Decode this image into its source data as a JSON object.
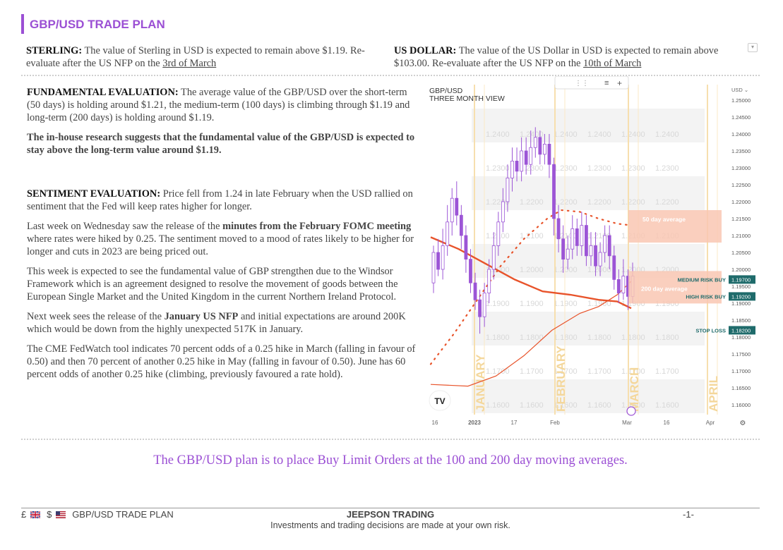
{
  "page": {
    "title": "GBP/USD TRADE PLAN"
  },
  "sterling": {
    "label": "STERLING:",
    "text": "The value of Sterling in USD is expected to remain above $1.19. Re-evaluate  after the US NFP on the ",
    "date": "3rd of March"
  },
  "usdollar": {
    "label": "US DOLLAR:",
    "text": "The value of the US Dollar in USD is expected to remain above $103.00. Re-evaluate after the US NFP on the ",
    "date": "10th of March"
  },
  "fundamental": {
    "label": "FUNDAMENTAL EVALUATION:",
    "text": "The average value of the GBP/USD over the short-term (50 days) is holding around $1.21, the medium-term (100 days) is climbing through $1.19 and long-term (200 days) is holding around $1.19.",
    "research": "The in-house research suggests that the fundamental value of the GBP/USD is expected to stay above the long-term value around $1.19."
  },
  "sentiment": {
    "label": "SENTIMENT EVALUATION:",
    "text": "Price fell from 1.24 in late February when the USD rallied on sentiment that the Fed will keep rates higher for longer.",
    "p2_a": "Last week on Wednesday saw the release of the ",
    "p2_b": "minutes from the February FOMC meeting",
    "p2_c": " where rates were hiked by 0.25. The sentiment moved to a mood of rates likely to be higher for longer and cuts in 2023 are being priced out.",
    "p3": "This week is expected to see the fundamental value of GBP strengthen due to the Windsor Framework which is an agreement designed to resolve the movement of goods between the European Single Market and the United Kingdom in the current Northern Ireland Protocol.",
    "p4_a": "Next week sees the release of the ",
    "p4_b": "January US NFP",
    "p4_c": " and initial expectations are around 200K which would be down from the highly unexpected 517K in January.",
    "p5": "The CME FedWatch tool indicates 70 percent odds of a 0.25 hike in March (falling in favour of 0.50) and then 70 percent of another 0.25 hike in May (falling in favour of 0.50). June has 60 percent odds of another 0.25 hike (climbing, previously favoured a rate hold)."
  },
  "chart": {
    "symbol": "GBP/USD",
    "subtitle": "THREE MONTH VIEW",
    "currency": "USD",
    "watermark_levels": [
      "1.2400",
      "1.2300",
      "1.2200",
      "1.2100",
      "1.2000",
      "1.1900",
      "1.1800",
      "1.1700",
      "1.1600"
    ],
    "axis_labels": [
      "1.25000",
      "1.24500",
      "1.24000",
      "1.23500",
      "1.23000",
      "1.22500",
      "1.22000",
      "1.21500",
      "1.21000",
      "1.20500",
      "1.20000",
      "1.19500",
      "1.19000",
      "1.18500",
      "1.18000",
      "1.17500",
      "1.17000",
      "1.16500",
      "1.16000"
    ],
    "month_labels": [
      "JANUARY",
      "FEBRUARY",
      "MARCH",
      "APRIL"
    ],
    "x_ticks": [
      "16",
      "2023",
      "17",
      "Feb",
      "Mar",
      "16",
      "Apr"
    ],
    "ma50_label": "50 day average",
    "ma200_label": "200 day average",
    "orders": [
      {
        "label": "MEDIUM RISK BUY",
        "price": "1.19700"
      },
      {
        "label": "HIGH RISK BUY",
        "price": "1.19200"
      },
      {
        "label": "STOP LOSS",
        "price": "1.18200"
      }
    ],
    "logo": "TV"
  },
  "plan": "The GBP/USD plan is to place Buy Limit Orders at the 100 and 200 day moving averages.",
  "footer": {
    "left": "GBP/USD TRADE PLAN",
    "left_symbols": [
      "£",
      "$"
    ],
    "company": "JEEPSON TRADING",
    "page": "-1-",
    "disclaimer": "Investments and trading decisions are made at your own risk."
  },
  "colors": {
    "accent": "#9b4fd4",
    "ma_line": "#e8532a",
    "order_badge": "#1f6b6b",
    "band": "#f9c7b3"
  },
  "chart_data": {
    "type": "candlestick",
    "title": "GBP/USD",
    "subtitle": "THREE MONTH VIEW",
    "ylim": [
      1.158,
      1.252
    ],
    "candles": [
      [
        1.196,
        1.205,
        1.193,
        1.207
      ],
      [
        1.205,
        1.2,
        1.198,
        1.209
      ],
      [
        1.2,
        1.207,
        1.197,
        1.212
      ],
      [
        1.207,
        1.214,
        1.204,
        1.219
      ],
      [
        1.214,
        1.221,
        1.21,
        1.224
      ],
      [
        1.221,
        1.216,
        1.213,
        1.226
      ],
      [
        1.216,
        1.21,
        1.206,
        1.219
      ],
      [
        1.21,
        1.203,
        1.199,
        1.213
      ],
      [
        1.203,
        1.196,
        1.193,
        1.206
      ],
      [
        1.196,
        1.191,
        1.188,
        1.199
      ],
      [
        1.191,
        1.186,
        1.181,
        1.194
      ],
      [
        1.186,
        1.193,
        1.183,
        1.196
      ],
      [
        1.193,
        1.2,
        1.19,
        1.203
      ],
      [
        1.2,
        1.207,
        1.197,
        1.211
      ],
      [
        1.207,
        1.214,
        1.204,
        1.217
      ],
      [
        1.214,
        1.22,
        1.211,
        1.224
      ],
      [
        1.22,
        1.227,
        1.217,
        1.231
      ],
      [
        1.227,
        1.232,
        1.223,
        1.236
      ],
      [
        1.232,
        1.229,
        1.226,
        1.236
      ],
      [
        1.229,
        1.235,
        1.226,
        1.239
      ],
      [
        1.235,
        1.231,
        1.228,
        1.239
      ],
      [
        1.231,
        1.236,
        1.228,
        1.241
      ],
      [
        1.236,
        1.239,
        1.233,
        1.242
      ],
      [
        1.239,
        1.234,
        1.231,
        1.241
      ],
      [
        1.234,
        1.237,
        1.231,
        1.24
      ],
      [
        1.237,
        1.231,
        1.227,
        1.24
      ],
      [
        1.231,
        1.215,
        1.21,
        1.233
      ],
      [
        1.215,
        1.209,
        1.205,
        1.219
      ],
      [
        1.209,
        1.203,
        1.199,
        1.213
      ],
      [
        1.203,
        1.206,
        1.2,
        1.21
      ],
      [
        1.206,
        1.212,
        1.203,
        1.216
      ],
      [
        1.212,
        1.207,
        1.204,
        1.215
      ],
      [
        1.207,
        1.213,
        1.204,
        1.217
      ],
      [
        1.213,
        1.204,
        1.201,
        1.216
      ],
      [
        1.204,
        1.207,
        1.201,
        1.211
      ],
      [
        1.207,
        1.201,
        1.198,
        1.211
      ],
      [
        1.201,
        1.205,
        1.198,
        1.208
      ],
      [
        1.205,
        1.21,
        1.202,
        1.213
      ],
      [
        1.21,
        1.204,
        1.2,
        1.213
      ],
      [
        1.204,
        1.197,
        1.194,
        1.207
      ],
      [
        1.197,
        1.193,
        1.19,
        1.2
      ],
      [
        1.193,
        1.198,
        1.191,
        1.203
      ],
      [
        1.198,
        1.192,
        1.188,
        1.2
      ],
      [
        1.192,
        1.198,
        1.19,
        1.202
      ]
    ],
    "ma50": [
      null,
      null,
      null,
      null,
      null,
      null,
      null,
      null,
      null,
      null,
      null,
      null,
      null,
      null,
      null,
      null,
      null,
      null,
      null,
      null,
      null,
      null,
      null,
      null,
      null,
      null,
      null,
      null,
      null,
      null,
      null,
      null,
      null,
      null,
      null,
      null,
      null,
      null,
      null,
      null,
      null,
      null,
      null,
      null
    ],
    "ma50_points": [
      [
        0,
        1.172
      ],
      [
        5,
        1.181
      ],
      [
        10,
        1.191
      ],
      [
        15,
        1.201
      ],
      [
        20,
        1.209
      ],
      [
        25,
        1.215
      ],
      [
        28,
        1.2175
      ],
      [
        32,
        1.217
      ],
      [
        36,
        1.215
      ],
      [
        40,
        1.2135
      ],
      [
        43,
        1.213
      ]
    ],
    "ma100_points": [
      [
        0,
        1.166
      ],
      [
        8,
        1.1655
      ],
      [
        14,
        1.1685
      ],
      [
        20,
        1.1745
      ],
      [
        26,
        1.182
      ],
      [
        32,
        1.187
      ],
      [
        36,
        1.189
      ],
      [
        40,
        1.1925
      ],
      [
        43,
        1.1965
      ]
    ],
    "ma200_points": [
      [
        0,
        1.2095
      ],
      [
        6,
        1.206
      ],
      [
        12,
        1.2015
      ],
      [
        18,
        1.197
      ],
      [
        24,
        1.1935
      ],
      [
        30,
        1.1925
      ],
      [
        36,
        1.191
      ],
      [
        40,
        1.1905
      ],
      [
        43,
        1.1885
      ]
    ],
    "order_levels": [
      1.197,
      1.192,
      1.182
    ],
    "x_ticks": [
      "16",
      "2023",
      "17",
      "Feb",
      "Mar",
      "16",
      "Apr"
    ]
  }
}
